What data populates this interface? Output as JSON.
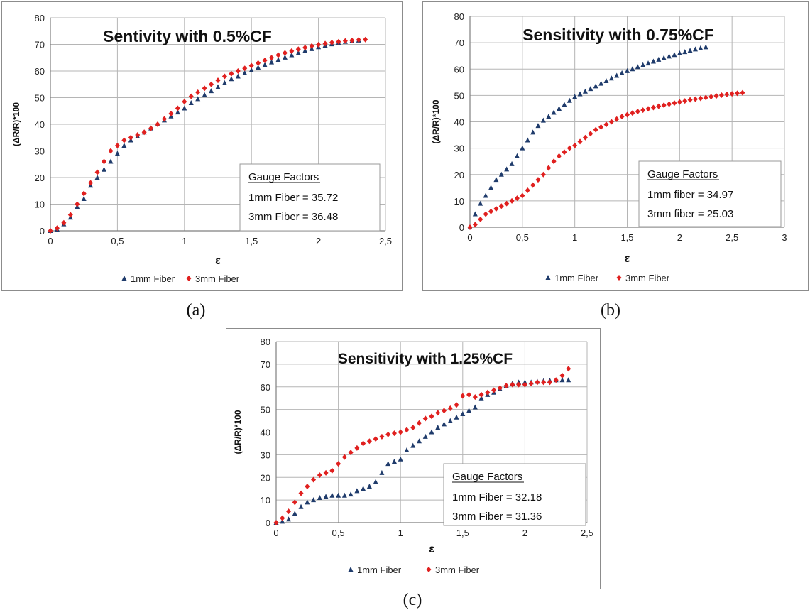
{
  "colors": {
    "series_1mm": "#1f3b6b",
    "series_3mm": "#e0201f",
    "grid": "#b5b5b5",
    "axis": "#7f7f7f"
  },
  "captions": [
    "(a)",
    "(b)",
    "(c)"
  ],
  "chart_data": [
    {
      "type": "scatter",
      "title": "Sentivity with 0.5%CF",
      "xlabel": "ε",
      "ylabel": "(ΔR/R)*100",
      "xlim": [
        0,
        2.5
      ],
      "ylim": [
        0,
        80
      ],
      "xticks": [
        "0",
        "0,5",
        "1",
        "1,5",
        "2",
        "2,5"
      ],
      "yticks": [
        "0",
        "10",
        "20",
        "30",
        "40",
        "50",
        "60",
        "70",
        "80"
      ],
      "grid": true,
      "legend": "bottom",
      "gauge_factors": {
        "heading": "Gauge Factors",
        "lines": [
          "1mm Fiber = 35.72",
          "3mm Fiber = 36.48"
        ]
      },
      "series": [
        {
          "name": "1mm Fiber",
          "marker": "triangle",
          "x": [
            0,
            0.05,
            0.1,
            0.15,
            0.2,
            0.25,
            0.3,
            0.35,
            0.4,
            0.45,
            0.5,
            0.55,
            0.6,
            0.65,
            0.7,
            0.75,
            0.8,
            0.85,
            0.9,
            0.95,
            1.0,
            1.05,
            1.1,
            1.15,
            1.2,
            1.25,
            1.3,
            1.35,
            1.4,
            1.45,
            1.5,
            1.55,
            1.6,
            1.65,
            1.7,
            1.75,
            1.8,
            1.85,
            1.9,
            1.95,
            2.0,
            2.05,
            2.1,
            2.15,
            2.2,
            2.25,
            2.3
          ],
          "y": [
            0,
            0.5,
            2.5,
            5,
            9,
            12,
            17,
            20,
            23,
            26,
            29,
            32,
            34,
            35.5,
            37,
            38.5,
            40,
            41.5,
            43,
            44.5,
            46,
            48,
            49.5,
            51,
            52.5,
            54,
            55.5,
            57,
            58,
            59.2,
            60.3,
            61.3,
            62.3,
            63.3,
            64.2,
            65.1,
            66,
            66.8,
            67.6,
            68.3,
            69,
            69.6,
            70.1,
            70.6,
            71,
            71.3,
            71.5
          ]
        },
        {
          "name": "3mm Fiber",
          "marker": "diamond",
          "x": [
            0,
            0.05,
            0.1,
            0.15,
            0.2,
            0.25,
            0.3,
            0.35,
            0.4,
            0.45,
            0.5,
            0.55,
            0.6,
            0.65,
            0.7,
            0.75,
            0.8,
            0.85,
            0.9,
            0.95,
            1.0,
            1.05,
            1.1,
            1.15,
            1.2,
            1.25,
            1.3,
            1.35,
            1.4,
            1.45,
            1.5,
            1.55,
            1.6,
            1.65,
            1.7,
            1.75,
            1.8,
            1.85,
            1.9,
            1.95,
            2.0,
            2.05,
            2.1,
            2.15,
            2.2,
            2.25,
            2.3,
            2.35
          ],
          "y": [
            0,
            1,
            3,
            6,
            10,
            14,
            18,
            22,
            26,
            30,
            32,
            34,
            35,
            36,
            37,
            38.5,
            40,
            42,
            44,
            46,
            48.5,
            50.5,
            52,
            53.5,
            55,
            56.5,
            58,
            59,
            60,
            61,
            62,
            63,
            64,
            65,
            66,
            66.8,
            67.5,
            68.2,
            68.8,
            69.4,
            69.9,
            70.3,
            70.7,
            71,
            71.3,
            71.5,
            71.7,
            71.8
          ]
        }
      ]
    },
    {
      "type": "scatter",
      "title": "Sensitivity with 0.75%CF",
      "xlabel": "ε",
      "ylabel": "(ΔR/R)*100",
      "xlim": [
        0,
        3
      ],
      "ylim": [
        0,
        80
      ],
      "xticks": [
        "0",
        "0,5",
        "1",
        "1,5",
        "2",
        "2,5",
        "3"
      ],
      "yticks": [
        "0",
        "10",
        "20",
        "30",
        "40",
        "50",
        "60",
        "70",
        "80"
      ],
      "grid": true,
      "legend": "bottom",
      "gauge_factors": {
        "heading": "Gauge Factors",
        "lines": [
          "1mm fiber = 34.97",
          "3mm fiber = 25.03"
        ]
      },
      "series": [
        {
          "name": "1mm Fiber",
          "marker": "triangle",
          "x": [
            0,
            0.05,
            0.1,
            0.15,
            0.2,
            0.25,
            0.3,
            0.35,
            0.4,
            0.45,
            0.5,
            0.55,
            0.6,
            0.65,
            0.7,
            0.75,
            0.8,
            0.85,
            0.9,
            0.95,
            1.0,
            1.05,
            1.1,
            1.15,
            1.2,
            1.25,
            1.3,
            1.35,
            1.4,
            1.45,
            1.5,
            1.55,
            1.6,
            1.65,
            1.7,
            1.75,
            1.8,
            1.85,
            1.9,
            1.95,
            2.0,
            2.05,
            2.1,
            2.15,
            2.2,
            2.25
          ],
          "y": [
            0,
            5,
            9,
            12,
            15,
            18,
            20,
            22,
            24,
            27,
            30,
            33,
            36,
            38.5,
            40.5,
            42,
            43.5,
            45,
            46.5,
            48,
            49.5,
            50.5,
            51.5,
            52.5,
            53.5,
            54.5,
            55.5,
            56.5,
            57.5,
            58.5,
            59.3,
            60,
            60.8,
            61.5,
            62.2,
            62.9,
            63.6,
            64.2,
            64.8,
            65.4,
            66,
            66.5,
            67,
            67.5,
            67.9,
            68.3
          ]
        },
        {
          "name": "3mm Fiber",
          "marker": "diamond",
          "x": [
            0,
            0.05,
            0.1,
            0.15,
            0.2,
            0.25,
            0.3,
            0.35,
            0.4,
            0.45,
            0.5,
            0.55,
            0.6,
            0.65,
            0.7,
            0.75,
            0.8,
            0.85,
            0.9,
            0.95,
            1.0,
            1.05,
            1.1,
            1.15,
            1.2,
            1.25,
            1.3,
            1.35,
            1.4,
            1.45,
            1.5,
            1.55,
            1.6,
            1.65,
            1.7,
            1.75,
            1.8,
            1.85,
            1.9,
            1.95,
            2.0,
            2.05,
            2.1,
            2.15,
            2.2,
            2.25,
            2.3,
            2.35,
            2.4,
            2.45,
            2.5,
            2.55,
            2.6
          ],
          "y": [
            0,
            1,
            3,
            5,
            6,
            7,
            8,
            9,
            10,
            11,
            12,
            14,
            16,
            18,
            20,
            22.5,
            25,
            27,
            28.5,
            30,
            31,
            32.5,
            34,
            35.5,
            37,
            38,
            39,
            40,
            41,
            42,
            42.7,
            43.3,
            43.9,
            44.4,
            44.9,
            45.4,
            45.9,
            46.3,
            46.7,
            47.1,
            47.5,
            47.9,
            48.3,
            48.6,
            48.9,
            49.2,
            49.5,
            49.8,
            50.1,
            50.4,
            50.6,
            50.8,
            51
          ]
        }
      ]
    },
    {
      "type": "scatter",
      "title": "Sensitivity with 1.25%CF",
      "xlabel": "ε",
      "ylabel": "(ΔR/R)*100",
      "xlim": [
        0,
        2.5
      ],
      "ylim": [
        0,
        80
      ],
      "xticks": [
        "0",
        "0,5",
        "1",
        "1,5",
        "2",
        "2,5"
      ],
      "yticks": [
        "0",
        "10",
        "20",
        "30",
        "40",
        "50",
        "60",
        "70",
        "80"
      ],
      "grid": true,
      "legend": "bottom",
      "gauge_factors": {
        "heading": "Gauge Factors",
        "lines": [
          "1mm Fiber = 32.18",
          "3mm Fiber = 31.36"
        ]
      },
      "series": [
        {
          "name": "1mm Fiber",
          "marker": "triangle",
          "x": [
            0,
            0.05,
            0.1,
            0.15,
            0.2,
            0.25,
            0.3,
            0.35,
            0.4,
            0.45,
            0.5,
            0.55,
            0.6,
            0.65,
            0.7,
            0.75,
            0.8,
            0.85,
            0.9,
            0.95,
            1.0,
            1.05,
            1.1,
            1.15,
            1.2,
            1.25,
            1.3,
            1.35,
            1.4,
            1.45,
            1.5,
            1.55,
            1.6,
            1.65,
            1.7,
            1.75,
            1.8,
            1.85,
            1.9,
            1.95,
            2.0,
            2.05,
            2.1,
            2.15,
            2.2,
            2.25,
            2.3,
            2.35
          ],
          "y": [
            0,
            0.5,
            1.5,
            4,
            7,
            9,
            10,
            11,
            11.5,
            12,
            12,
            12,
            12.5,
            14,
            15,
            16,
            18,
            22,
            26,
            27,
            28,
            32,
            34,
            36,
            38,
            40,
            42,
            43.5,
            45,
            46.5,
            48,
            49.5,
            51,
            55,
            56.5,
            57.5,
            59,
            60.5,
            61.5,
            62,
            62,
            62,
            62.3,
            62.6,
            62.8,
            63,
            63,
            63
          ]
        },
        {
          "name": "3mm Fiber",
          "marker": "diamond",
          "x": [
            0,
            0.05,
            0.1,
            0.15,
            0.2,
            0.25,
            0.3,
            0.35,
            0.4,
            0.45,
            0.5,
            0.55,
            0.6,
            0.65,
            0.7,
            0.75,
            0.8,
            0.85,
            0.9,
            0.95,
            1.0,
            1.05,
            1.1,
            1.15,
            1.2,
            1.25,
            1.3,
            1.35,
            1.4,
            1.45,
            1.5,
            1.55,
            1.6,
            1.65,
            1.7,
            1.75,
            1.8,
            1.85,
            1.9,
            1.95,
            2.0,
            2.05,
            2.1,
            2.15,
            2.2,
            2.25,
            2.3,
            2.35
          ],
          "y": [
            0,
            2,
            5,
            9,
            13,
            16,
            19,
            21,
            22,
            23,
            26,
            29,
            31,
            33,
            35,
            36,
            37,
            38,
            39,
            39.5,
            40,
            41,
            42,
            44,
            46,
            47,
            48.5,
            49.5,
            50.5,
            52,
            56,
            56.5,
            55.5,
            56.5,
            57.5,
            58.5,
            59.5,
            60.5,
            61,
            61,
            61,
            61.5,
            62,
            62,
            62,
            63,
            65,
            68
          ]
        }
      ]
    }
  ]
}
